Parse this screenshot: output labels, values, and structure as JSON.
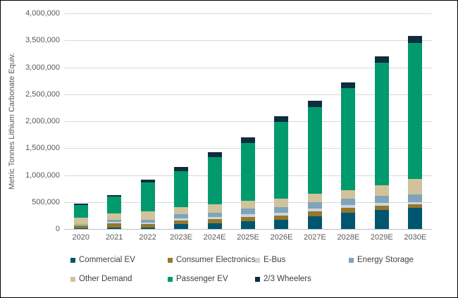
{
  "chart_data": {
    "type": "bar",
    "stacked": true,
    "ylabel": "Metric Tonnes Lithium Carbonate Equiv.",
    "xlabel": "",
    "ylim": [
      0,
      4000000
    ],
    "ytick_interval": 500000,
    "yticks_top_to_bottom": [
      "4,000,000",
      "3,500,000",
      "3,000,000",
      "2,500,000",
      "2,000,000",
      "1,500,000",
      "1,000,000",
      "500,000",
      "0"
    ],
    "grid": true,
    "legend_position": "bottom",
    "categories": [
      "2020",
      "2021",
      "2022",
      "2023E",
      "2024E",
      "2025E",
      "2026E",
      "2027E",
      "2028E",
      "2029E",
      "2030E"
    ],
    "series_stacked_bottom_to_top": [
      {
        "name": "Commercial EV",
        "color": "#00566F",
        "values": [
          10000,
          25000,
          25000,
          90000,
          100000,
          150000,
          172000,
          237000,
          306000,
          358000,
          393000
        ]
      },
      {
        "name": "Consumer Electronics",
        "color": "#95782B",
        "values": [
          50000,
          75000,
          70000,
          65000,
          78000,
          78000,
          78000,
          87000,
          83000,
          68000,
          61000
        ]
      },
      {
        "name": "E-Bus",
        "color": "#CBD5DC",
        "values": [
          20000,
          25000,
          25000,
          40000,
          45000,
          50000,
          52000,
          55000,
          56000,
          57000,
          43000
        ]
      },
      {
        "name": "Energy Storage",
        "color": "#7FA4BB",
        "values": [
          15000,
          50000,
          50000,
          78000,
          82000,
          96000,
          100000,
          117000,
          121000,
          138000,
          143000
        ]
      },
      {
        "name": "Other Demand",
        "color": "#D0C39B",
        "values": [
          115000,
          115000,
          155000,
          130000,
          150000,
          143000,
          160000,
          152000,
          148000,
          195000,
          283000
        ]
      },
      {
        "name": "Passenger EV",
        "color": "#009A6E",
        "values": [
          230000,
          310000,
          545000,
          670000,
          880000,
          1075000,
          1423000,
          1620000,
          1900000,
          2265000,
          2535000
        ]
      },
      {
        "name": "2/3 Wheelers",
        "color": "#0E2D3D",
        "values": [
          30000,
          30000,
          50000,
          75000,
          95000,
          110000,
          110000,
          108000,
          108000,
          122000,
          122000
        ]
      }
    ],
    "approx_totals": [
      470000,
      630000,
      920000,
      1148000,
      1430000,
      1702000,
      2095000,
      2376000,
      2722000,
      3203000,
      3580000
    ],
    "legend_order": [
      "Commercial EV",
      "Consumer Electronics",
      "E-Bus",
      "Energy Storage",
      "Other Demand",
      "Passenger EV",
      "2/3 Wheelers"
    ]
  },
  "colors": {
    "background": "#ffffff",
    "frame_border": "#000000",
    "gridline": "#d9d9d9",
    "axis_text": "#595959",
    "legend_text": "#404040"
  }
}
